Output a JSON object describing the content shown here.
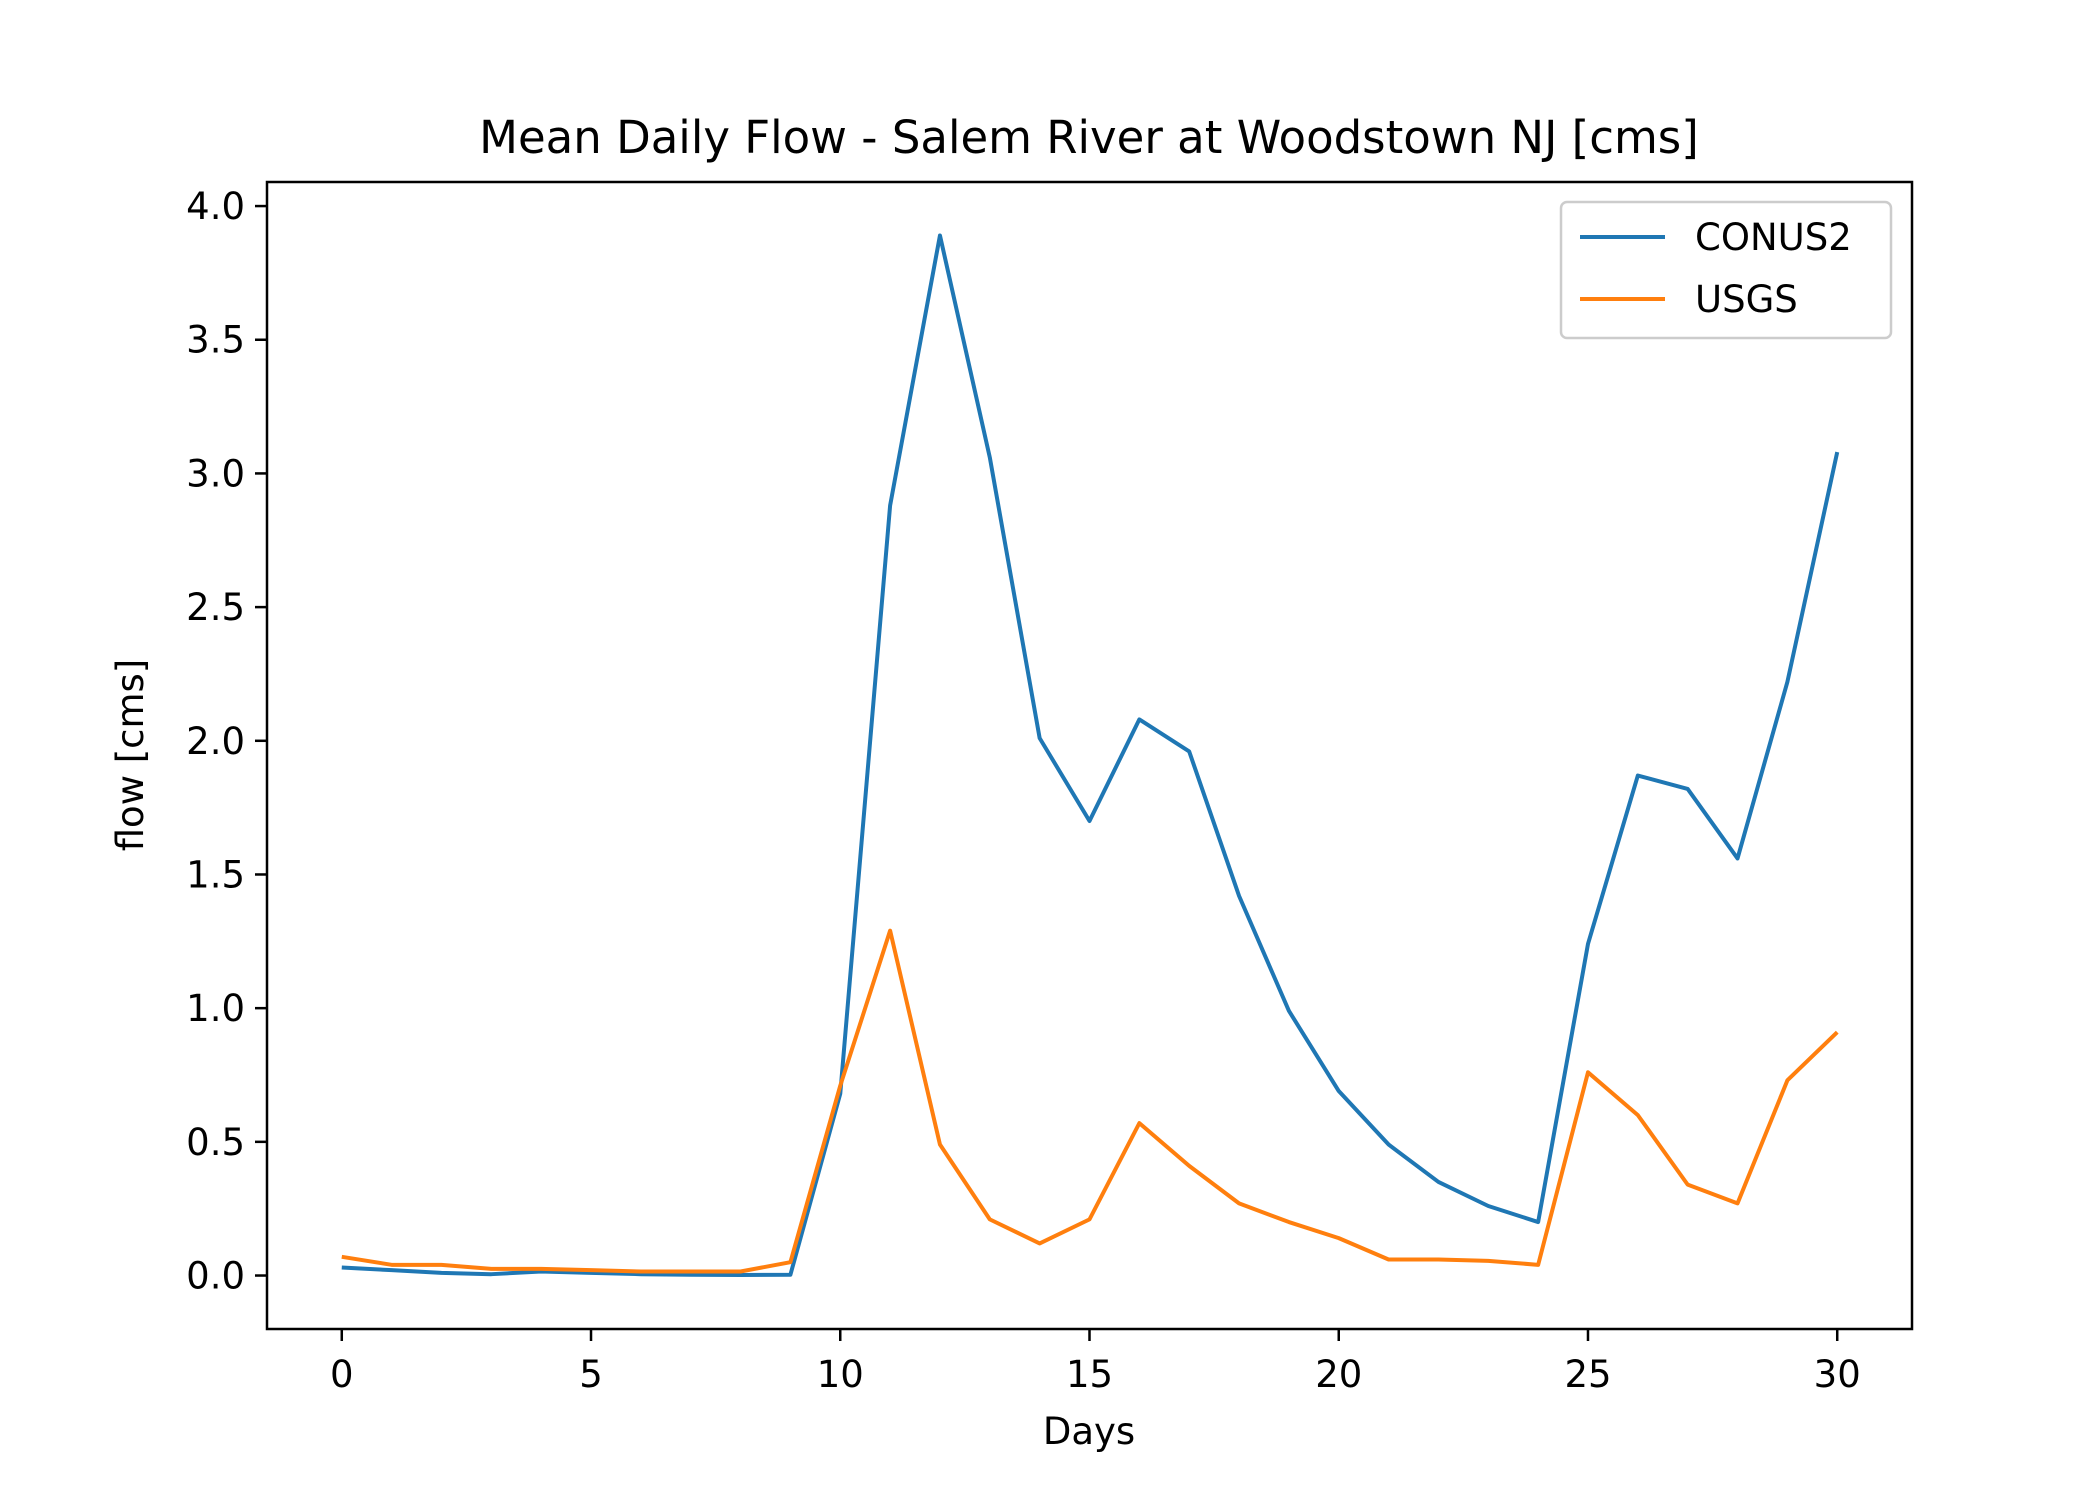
{
  "chart_data": {
    "type": "line",
    "title": "Mean Daily Flow - Salem River at Woodstown NJ [cms]",
    "xlabel": "Days",
    "ylabel": "flow [cms]",
    "xlim": [
      -1.5,
      31.5
    ],
    "ylim": [
      -0.2,
      4.09
    ],
    "xticks": [
      0,
      5,
      10,
      15,
      20,
      25,
      30
    ],
    "xtick_labels": [
      "0",
      "5",
      "10",
      "15",
      "20",
      "25",
      "30"
    ],
    "yticks": [
      0.0,
      0.5,
      1.0,
      1.5,
      2.0,
      2.5,
      3.0,
      3.5,
      4.0
    ],
    "ytick_labels": [
      "0.0",
      "0.5",
      "1.0",
      "1.5",
      "2.0",
      "2.5",
      "3.0",
      "3.5",
      "4.0"
    ],
    "grid": false,
    "legend_position": "top-right",
    "x": [
      0,
      1,
      2,
      3,
      4,
      5,
      6,
      7,
      8,
      9,
      10,
      11,
      12,
      13,
      14,
      15,
      16,
      17,
      18,
      19,
      20,
      21,
      22,
      23,
      24,
      25,
      26,
      27,
      28,
      29,
      30
    ],
    "series": [
      {
        "name": "CONUS2",
        "color": "#1f77b4",
        "values": [
          0.03,
          0.02,
          0.01,
          0.005,
          0.015,
          0.01,
          0.005,
          0.003,
          0.002,
          0.003,
          0.68,
          2.88,
          3.89,
          3.06,
          2.01,
          1.7,
          2.08,
          1.96,
          1.42,
          0.99,
          0.69,
          0.49,
          0.35,
          0.26,
          0.2,
          1.24,
          1.87,
          1.82,
          1.56,
          2.22,
          3.08
        ]
      },
      {
        "name": "USGS",
        "color": "#ff7f0e",
        "values": [
          0.07,
          0.04,
          0.04,
          0.025,
          0.025,
          0.02,
          0.015,
          0.015,
          0.015,
          0.05,
          0.71,
          1.29,
          0.49,
          0.21,
          0.12,
          0.21,
          0.57,
          0.41,
          0.27,
          0.2,
          0.14,
          0.06,
          0.06,
          0.055,
          0.04,
          0.76,
          0.6,
          0.34,
          0.27,
          0.73,
          0.91
        ]
      }
    ]
  }
}
